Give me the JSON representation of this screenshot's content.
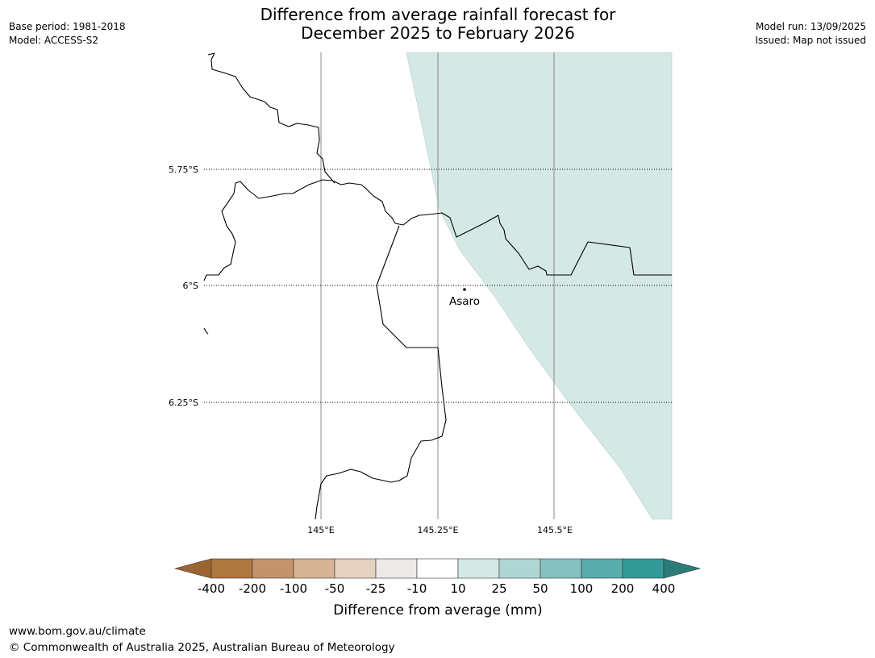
{
  "header": {
    "base_period": "Base period: 1981-2018",
    "model": "Model: ACCESS-S2",
    "model_run": "Model run: 13/09/2025",
    "issued": "Issued: Map not issued",
    "title_line1": "Difference from average rainfall forecast for",
    "title_line2": "December 2025 to February 2026"
  },
  "map": {
    "lat_labels": [
      "5.75°S",
      "6°S",
      "6.25°S"
    ],
    "lon_labels": [
      "145°E",
      "145.25°E",
      "145.5°E"
    ],
    "place": {
      "name": "Asaro",
      "lat": -6.01,
      "lon": 145.3
    },
    "shaded_category": "10 to 25",
    "shade_color": "#d4e8e6"
  },
  "legend": {
    "title": "Difference from average (mm)",
    "tick_labels": [
      "-400",
      "-200",
      "-100",
      "-50",
      "-25",
      "-10",
      "10",
      "25",
      "50",
      "100",
      "200",
      "400"
    ],
    "colors": [
      "#9c6430",
      "#ae773f",
      "#c3946b",
      "#d6b394",
      "#e6d2c1",
      "#ede9e7",
      "#ffffff",
      "#d4e8e6",
      "#b0d6d4",
      "#85c1be",
      "#5aacab",
      "#339a98",
      "#2b7b78"
    ]
  },
  "footer": {
    "url": "www.bom.gov.au/climate",
    "copyright": "© Commonwealth of Australia 2025, Australian Bureau of Meteorology"
  }
}
